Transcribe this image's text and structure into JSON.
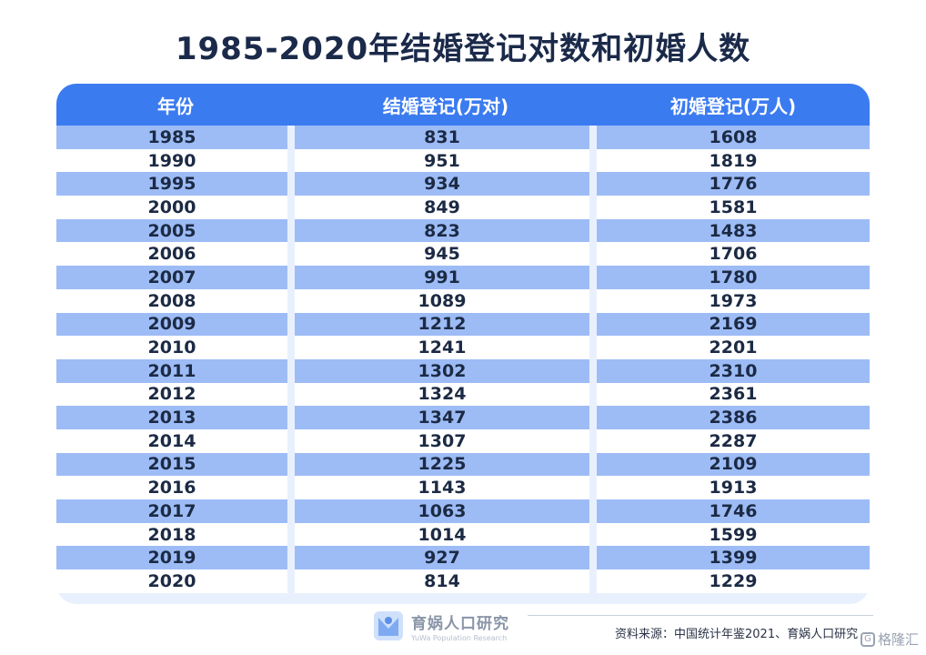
{
  "title": "1985-2020年结婚登记对数和初婚人数",
  "table": {
    "headers": [
      "年份",
      "结婚登记(万对)",
      "初婚登记(万人)"
    ],
    "rows": [
      [
        "1985",
        "831",
        "1608"
      ],
      [
        "1990",
        "951",
        "1819"
      ],
      [
        "1995",
        "934",
        "1776"
      ],
      [
        "2000",
        "849",
        "1581"
      ],
      [
        "2005",
        "823",
        "1483"
      ],
      [
        "2006",
        "945",
        "1706"
      ],
      [
        "2007",
        "991",
        "1780"
      ],
      [
        "2008",
        "1089",
        "1973"
      ],
      [
        "2009",
        "1212",
        "2169"
      ],
      [
        "2010",
        "1241",
        "2201"
      ],
      [
        "2011",
        "1302",
        "2310"
      ],
      [
        "2012",
        "1324",
        "2361"
      ],
      [
        "2013",
        "1347",
        "2386"
      ],
      [
        "2014",
        "1307",
        "2287"
      ],
      [
        "2015",
        "1225",
        "2109"
      ],
      [
        "2016",
        "1143",
        "1913"
      ],
      [
        "2017",
        "1063",
        "1746"
      ],
      [
        "2018",
        "1014",
        "1599"
      ],
      [
        "2019",
        "927",
        "1399"
      ],
      [
        "2020",
        "814",
        "1229"
      ]
    ]
  },
  "footer": {
    "logo_cn": "育娲人口研究",
    "logo_en": "YuWa Population Research",
    "source": "资料来源：中国统计年鉴2021、育娲人口研究"
  },
  "watermark": "格隆汇",
  "colors": {
    "header_bg": "#3b7bf0",
    "stripe": "#9dbcf6",
    "title": "#1b2a4a"
  }
}
